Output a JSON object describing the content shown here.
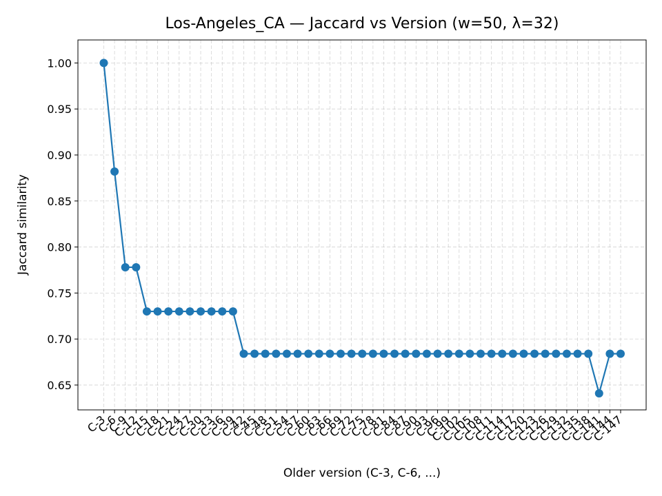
{
  "chart_data": {
    "type": "line",
    "title": "Los-Angeles_CA — Jaccard vs Version (w=50, λ=32)",
    "xlabel": "Older version (C-3, C-6, ...)",
    "ylabel": "Jaccard similarity",
    "ylim": [
      0.623,
      1.025
    ],
    "yticks": [
      "0.65",
      "0.70",
      "0.75",
      "0.80",
      "0.85",
      "0.90",
      "0.95",
      "1.00"
    ],
    "grid": true,
    "color": "#1f77b4",
    "categories": [
      "C-3",
      "C-6",
      "C-9",
      "C-12",
      "C-15",
      "C-18",
      "C-21",
      "C-24",
      "C-27",
      "C-30",
      "C-33",
      "C-36",
      "C-39",
      "C-42",
      "C-45",
      "C-48",
      "C-51",
      "C-54",
      "C-57",
      "C-60",
      "C-63",
      "C-66",
      "C-69",
      "C-72",
      "C-75",
      "C-78",
      "C-81",
      "C-84",
      "C-87",
      "C-90",
      "C-93",
      "C-96",
      "C-99",
      "C-102",
      "C-105",
      "C-108",
      "C-111",
      "C-114",
      "C-117",
      "C-120",
      "C-123",
      "C-126",
      "C-129",
      "C-132",
      "C-135",
      "C-138",
      "C-141",
      "C-144",
      "C-147"
    ],
    "values": [
      1.0,
      0.882,
      0.778,
      0.778,
      0.73,
      0.73,
      0.73,
      0.73,
      0.73,
      0.73,
      0.73,
      0.73,
      0.73,
      0.684,
      0.684,
      0.684,
      0.684,
      0.684,
      0.684,
      0.684,
      0.684,
      0.684,
      0.684,
      0.684,
      0.684,
      0.684,
      0.684,
      0.684,
      0.684,
      0.684,
      0.684,
      0.684,
      0.684,
      0.684,
      0.684,
      0.684,
      0.684,
      0.684,
      0.684,
      0.684,
      0.684,
      0.684,
      0.684,
      0.684,
      0.684,
      0.684,
      0.641,
      0.684,
      0.684
    ]
  }
}
